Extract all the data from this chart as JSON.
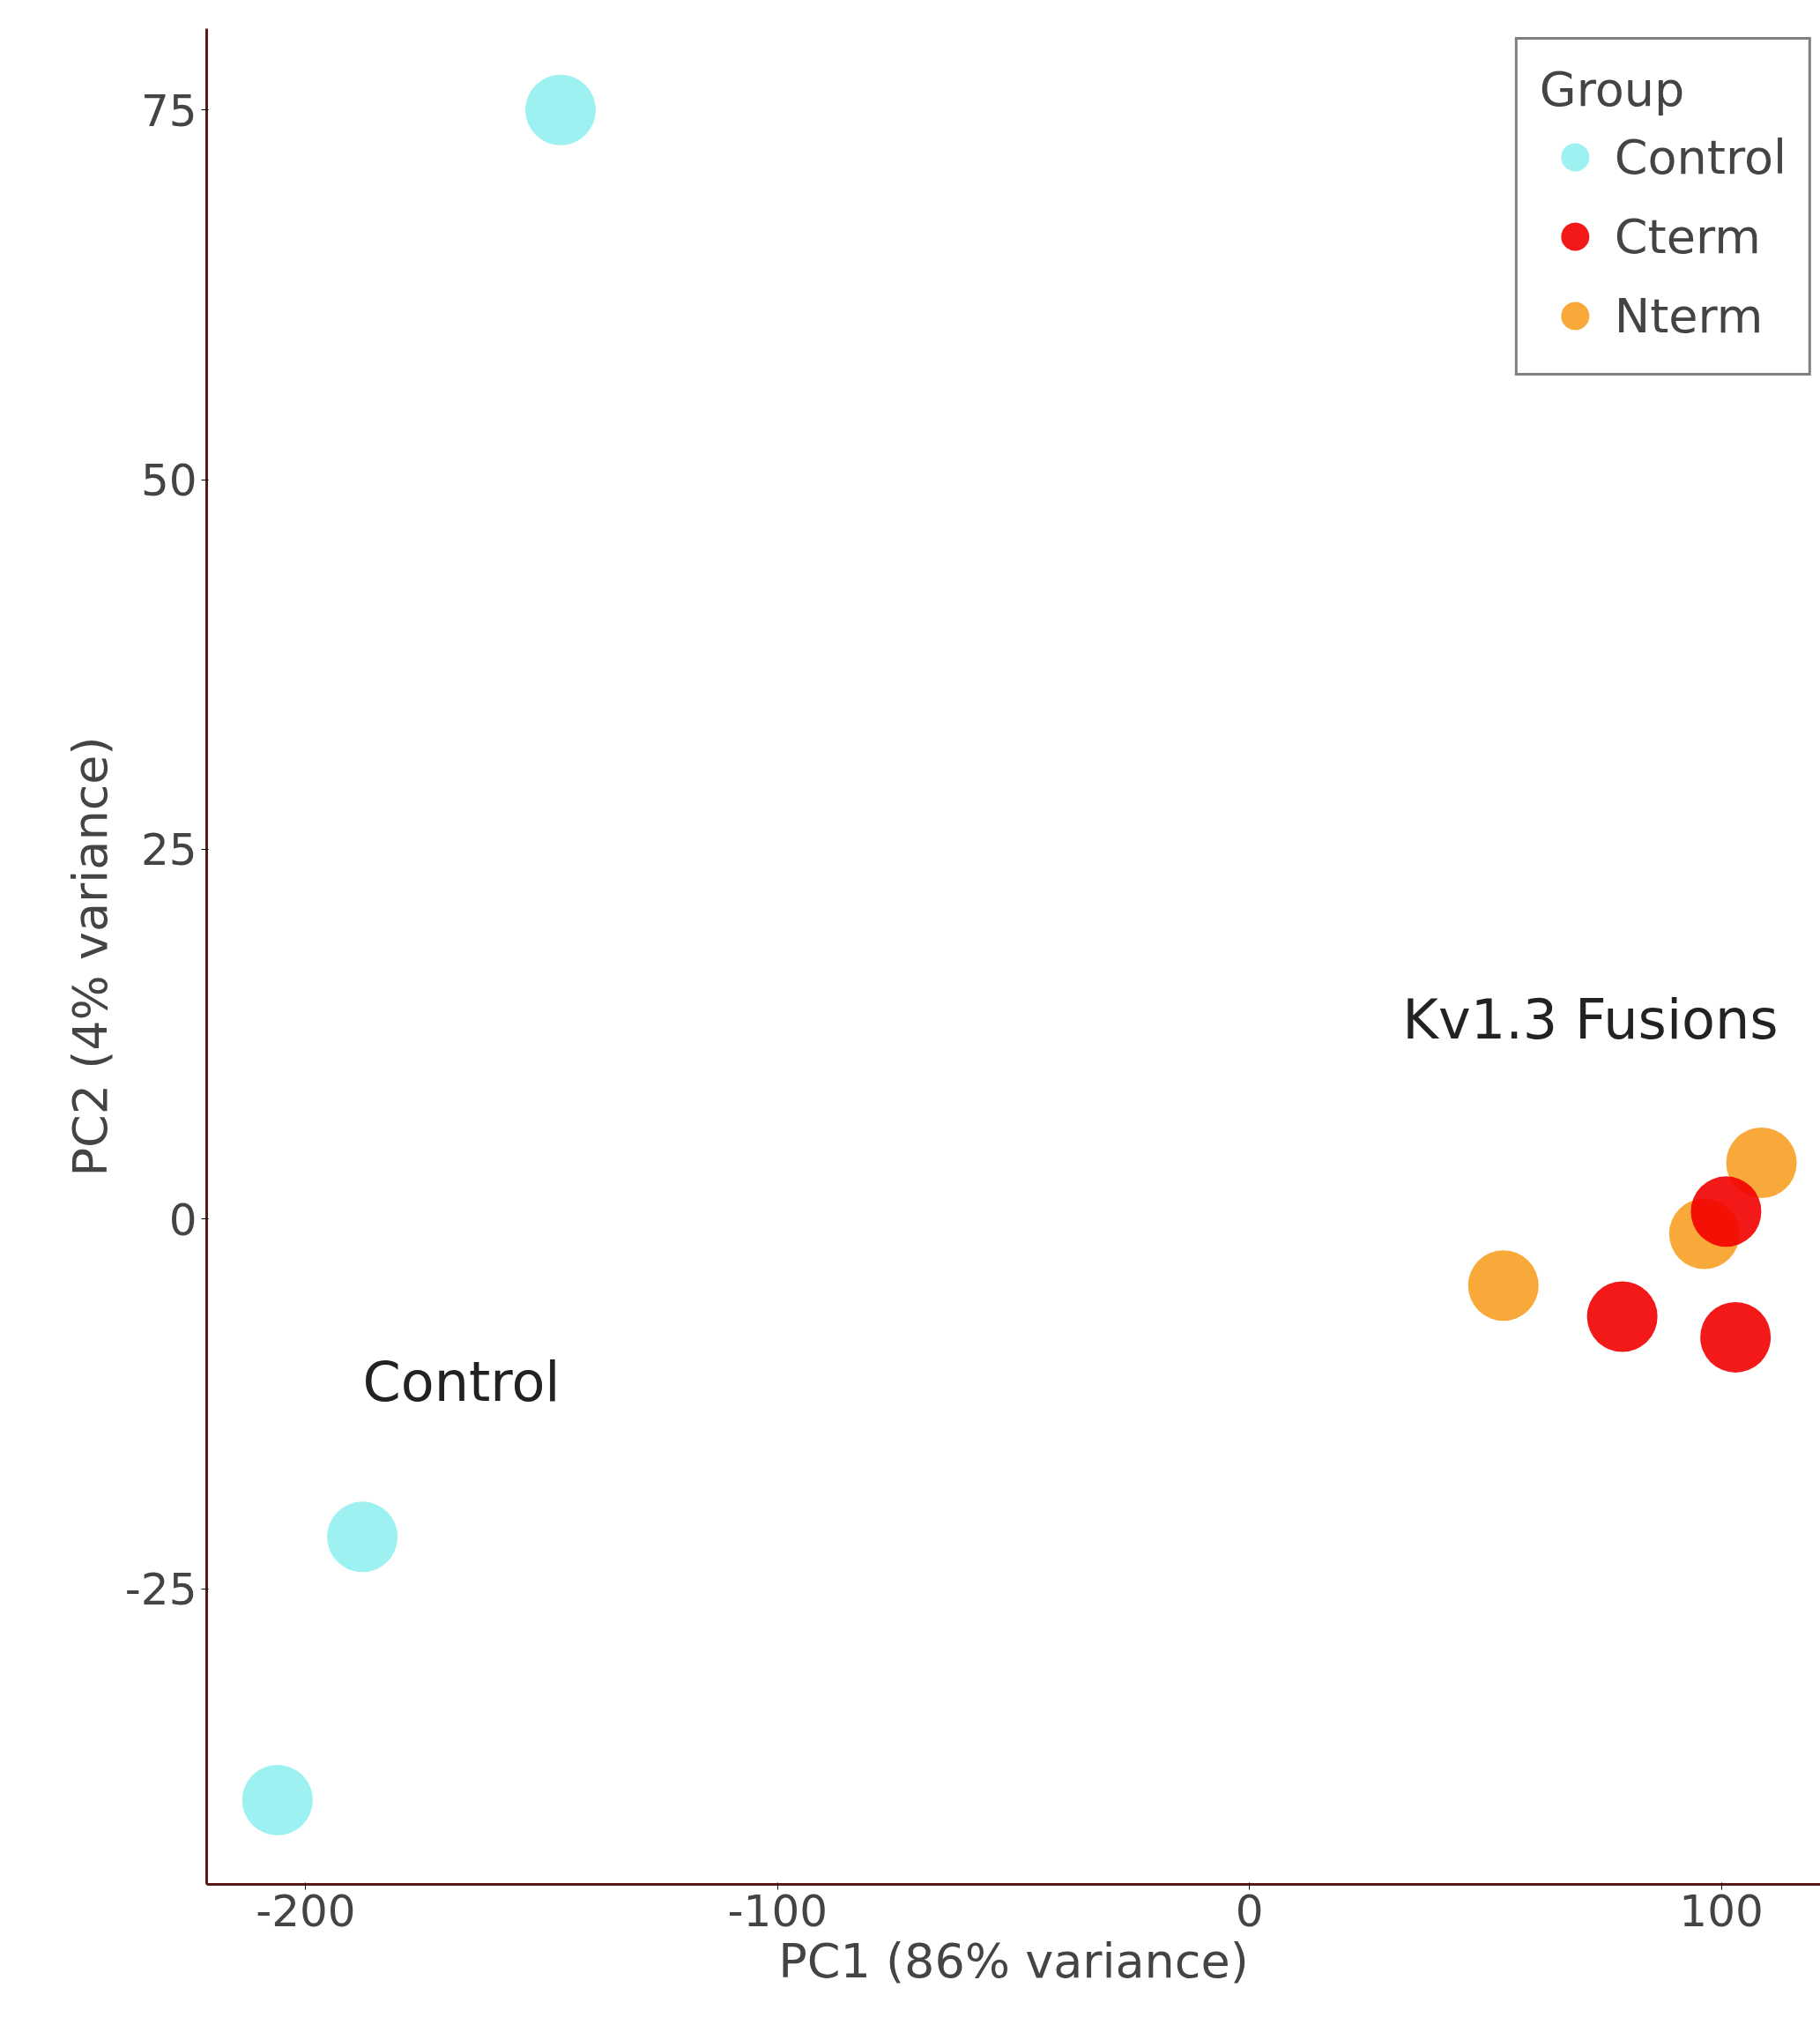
{
  "chart_data": {
    "type": "scatter",
    "xlabel": "PC1 (86% variance)",
    "ylabel": "PC2 (4% variance)",
    "legend_title": "Group",
    "series": [
      {
        "name": "Control",
        "color": "#93eff0",
        "x": [
          -146,
          -188,
          -206
        ],
        "values": [
          75,
          -21.5,
          -39.3
        ]
      },
      {
        "name": "Cterm",
        "color": "#f20000",
        "x": [
          101,
          79,
          103
        ],
        "values": [
          0.5,
          -6.6,
          -8.0
        ]
      },
      {
        "name": "Nterm",
        "color": "#f7a023",
        "x": [
          108.5,
          96.4,
          53.8
        ],
        "values": [
          3.8,
          -1.0,
          -4.5
        ]
      }
    ],
    "xlim": [
      -221,
      121
    ],
    "ylim": [
      -45,
      80.5
    ],
    "xticks": [
      -200,
      -100,
      0,
      100
    ],
    "yticks": [
      -25,
      0,
      25,
      50,
      75
    ],
    "annotations": [
      "Control",
      "Kv1.3 Fusions"
    ],
    "grid": false,
    "legend": "top right",
    "marker": "circle"
  }
}
